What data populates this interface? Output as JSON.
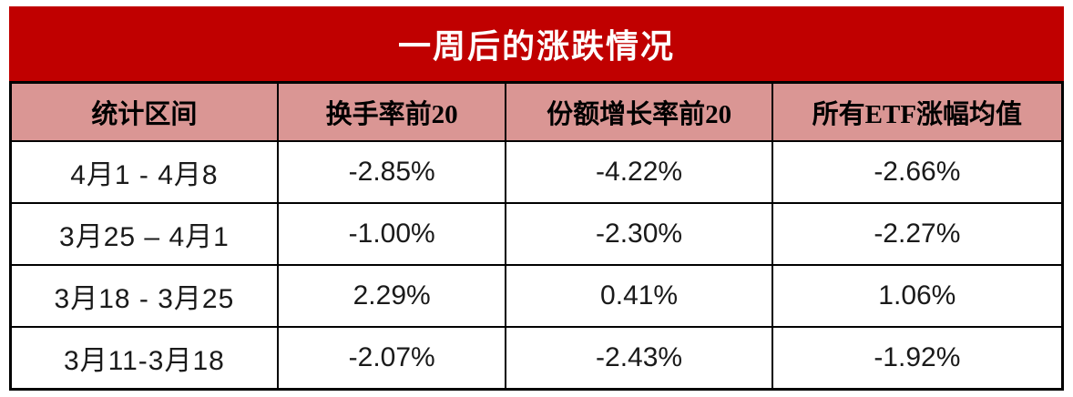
{
  "title": "一周后的涨跌情况",
  "table": {
    "headers": [
      "统计区间",
      "换手率前20",
      "份额增长率前20",
      "所有ETF涨幅均值"
    ],
    "rows": [
      [
        "4月1 - 4月8",
        "-2.85%",
        "-4.22%",
        "-2.66%"
      ],
      [
        "3月25 – 4月1",
        "-1.00%",
        "-2.30%",
        "-2.27%"
      ],
      [
        "3月18 - 3月25",
        "2.29%",
        "0.41%",
        "1.06%"
      ],
      [
        "3月11-3月18",
        "-2.07%",
        "-2.43%",
        "-1.92%"
      ]
    ]
  },
  "colors": {
    "title_bg": "#c00000",
    "title_text": "#ffffff",
    "header_bg": "#da9694",
    "header_text": "#000000",
    "cell_text": "#1a1a1a",
    "border": "#000000"
  },
  "chart_data": {
    "type": "table",
    "title": "一周后的涨跌情况",
    "columns": [
      "统计区间",
      "换手率前20",
      "份额增长率前20",
      "所有ETF涨幅均值"
    ],
    "categories": [
      "4月1 - 4月8",
      "3月25 – 4月1",
      "3月18 - 3月25",
      "3月11-3月18"
    ],
    "series": [
      {
        "name": "换手率前20",
        "values": [
          -2.85,
          -1.0,
          2.29,
          -2.07
        ]
      },
      {
        "name": "份额增长率前20",
        "values": [
          -4.22,
          -2.3,
          0.41,
          -2.43
        ]
      },
      {
        "name": "所有ETF涨幅均值",
        "values": [
          -2.66,
          -2.27,
          1.06,
          -1.92
        ]
      }
    ],
    "unit": "%",
    "legend_position": "none",
    "grid": true
  }
}
